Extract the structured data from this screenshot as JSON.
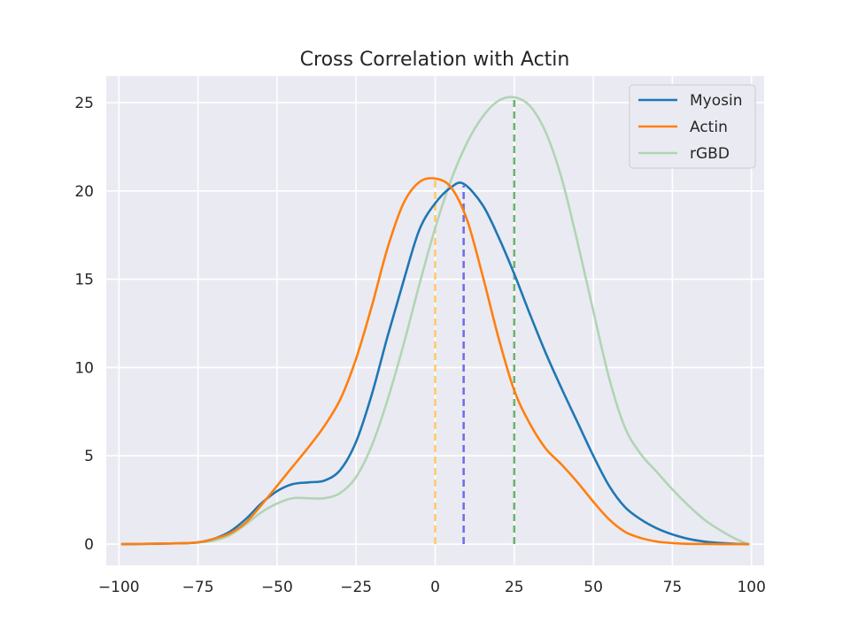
{
  "chart_data": {
    "type": "line",
    "title": "Cross Correlation with Actin",
    "xlabel": "",
    "ylabel": "",
    "xlim": [
      -104,
      104
    ],
    "ylim": [
      -1.2,
      26.5
    ],
    "grid": true,
    "legend_position": "top-right",
    "x_ticks": [
      -100,
      -75,
      -50,
      -25,
      0,
      25,
      50,
      75,
      100
    ],
    "x_tick_labels": [
      "−100",
      "−75",
      "−50",
      "−25",
      "0",
      "25",
      "50",
      "75",
      "100"
    ],
    "y_ticks": [
      0,
      5,
      10,
      15,
      20,
      25
    ],
    "y_tick_labels": [
      "0",
      "5",
      "10",
      "15",
      "20",
      "25"
    ],
    "series": [
      {
        "name": "Myosin",
        "color": "#1f77b4",
        "x": [
          -99,
          -90,
          -80,
          -75,
          -70,
          -65,
          -60,
          -55,
          -50,
          -45,
          -40,
          -35,
          -30,
          -25,
          -20,
          -15,
          -10,
          -5,
          0,
          5,
          9,
          15,
          20,
          25,
          30,
          35,
          40,
          45,
          50,
          55,
          60,
          65,
          70,
          75,
          80,
          85,
          90,
          95,
          99
        ],
        "y": [
          0.0,
          0.02,
          0.05,
          0.1,
          0.3,
          0.7,
          1.4,
          2.3,
          3.0,
          3.4,
          3.5,
          3.6,
          4.2,
          5.8,
          8.5,
          11.8,
          14.9,
          17.8,
          19.3,
          20.2,
          20.4,
          19.2,
          17.4,
          15.3,
          13.0,
          10.8,
          8.8,
          6.9,
          5.0,
          3.3,
          2.1,
          1.4,
          0.9,
          0.55,
          0.3,
          0.15,
          0.07,
          0.02,
          0.0
        ]
      },
      {
        "name": "Actin",
        "color": "#ff7f0e",
        "x": [
          -99,
          -90,
          -80,
          -75,
          -70,
          -65,
          -60,
          -55,
          -50,
          -45,
          -40,
          -35,
          -30,
          -25,
          -20,
          -15,
          -10,
          -5,
          0,
          5,
          10,
          15,
          20,
          25,
          30,
          35,
          40,
          45,
          50,
          55,
          60,
          65,
          70,
          75,
          80,
          85,
          90,
          95,
          99
        ],
        "y": [
          0.0,
          0.02,
          0.05,
          0.1,
          0.3,
          0.6,
          1.2,
          2.2,
          3.3,
          4.4,
          5.5,
          6.7,
          8.2,
          10.5,
          13.5,
          16.8,
          19.3,
          20.5,
          20.7,
          20.2,
          18.4,
          15.2,
          11.7,
          8.7,
          6.8,
          5.4,
          4.5,
          3.5,
          2.4,
          1.4,
          0.7,
          0.35,
          0.15,
          0.06,
          0.02,
          0.01,
          0.0,
          0.0,
          0.0
        ]
      },
      {
        "name": "rGBD",
        "color": "#b0d5b4",
        "x": [
          -99,
          -90,
          -80,
          -75,
          -70,
          -65,
          -60,
          -55,
          -50,
          -45,
          -40,
          -35,
          -30,
          -25,
          -20,
          -15,
          -10,
          -5,
          0,
          5,
          10,
          15,
          20,
          25,
          30,
          35,
          40,
          45,
          50,
          55,
          60,
          65,
          70,
          75,
          80,
          85,
          90,
          95,
          99
        ],
        "y": [
          0.0,
          0.02,
          0.05,
          0.1,
          0.2,
          0.5,
          1.1,
          1.8,
          2.3,
          2.6,
          2.6,
          2.6,
          2.9,
          3.8,
          5.6,
          8.2,
          11.3,
          14.7,
          17.9,
          20.6,
          22.7,
          24.2,
          25.1,
          25.3,
          24.8,
          23.3,
          20.7,
          17.1,
          13.2,
          9.4,
          6.6,
          5.1,
          4.1,
          3.1,
          2.2,
          1.4,
          0.8,
          0.3,
          0.0
        ]
      }
    ],
    "vertical_markers": [
      {
        "x": 0,
        "y_top": 20.7,
        "color": "#ffc966"
      },
      {
        "x": 9,
        "y_top": 20.3,
        "color": "#6b6bea"
      },
      {
        "x": 25,
        "y_top": 25.2,
        "color": "#6bb26b"
      }
    ]
  }
}
